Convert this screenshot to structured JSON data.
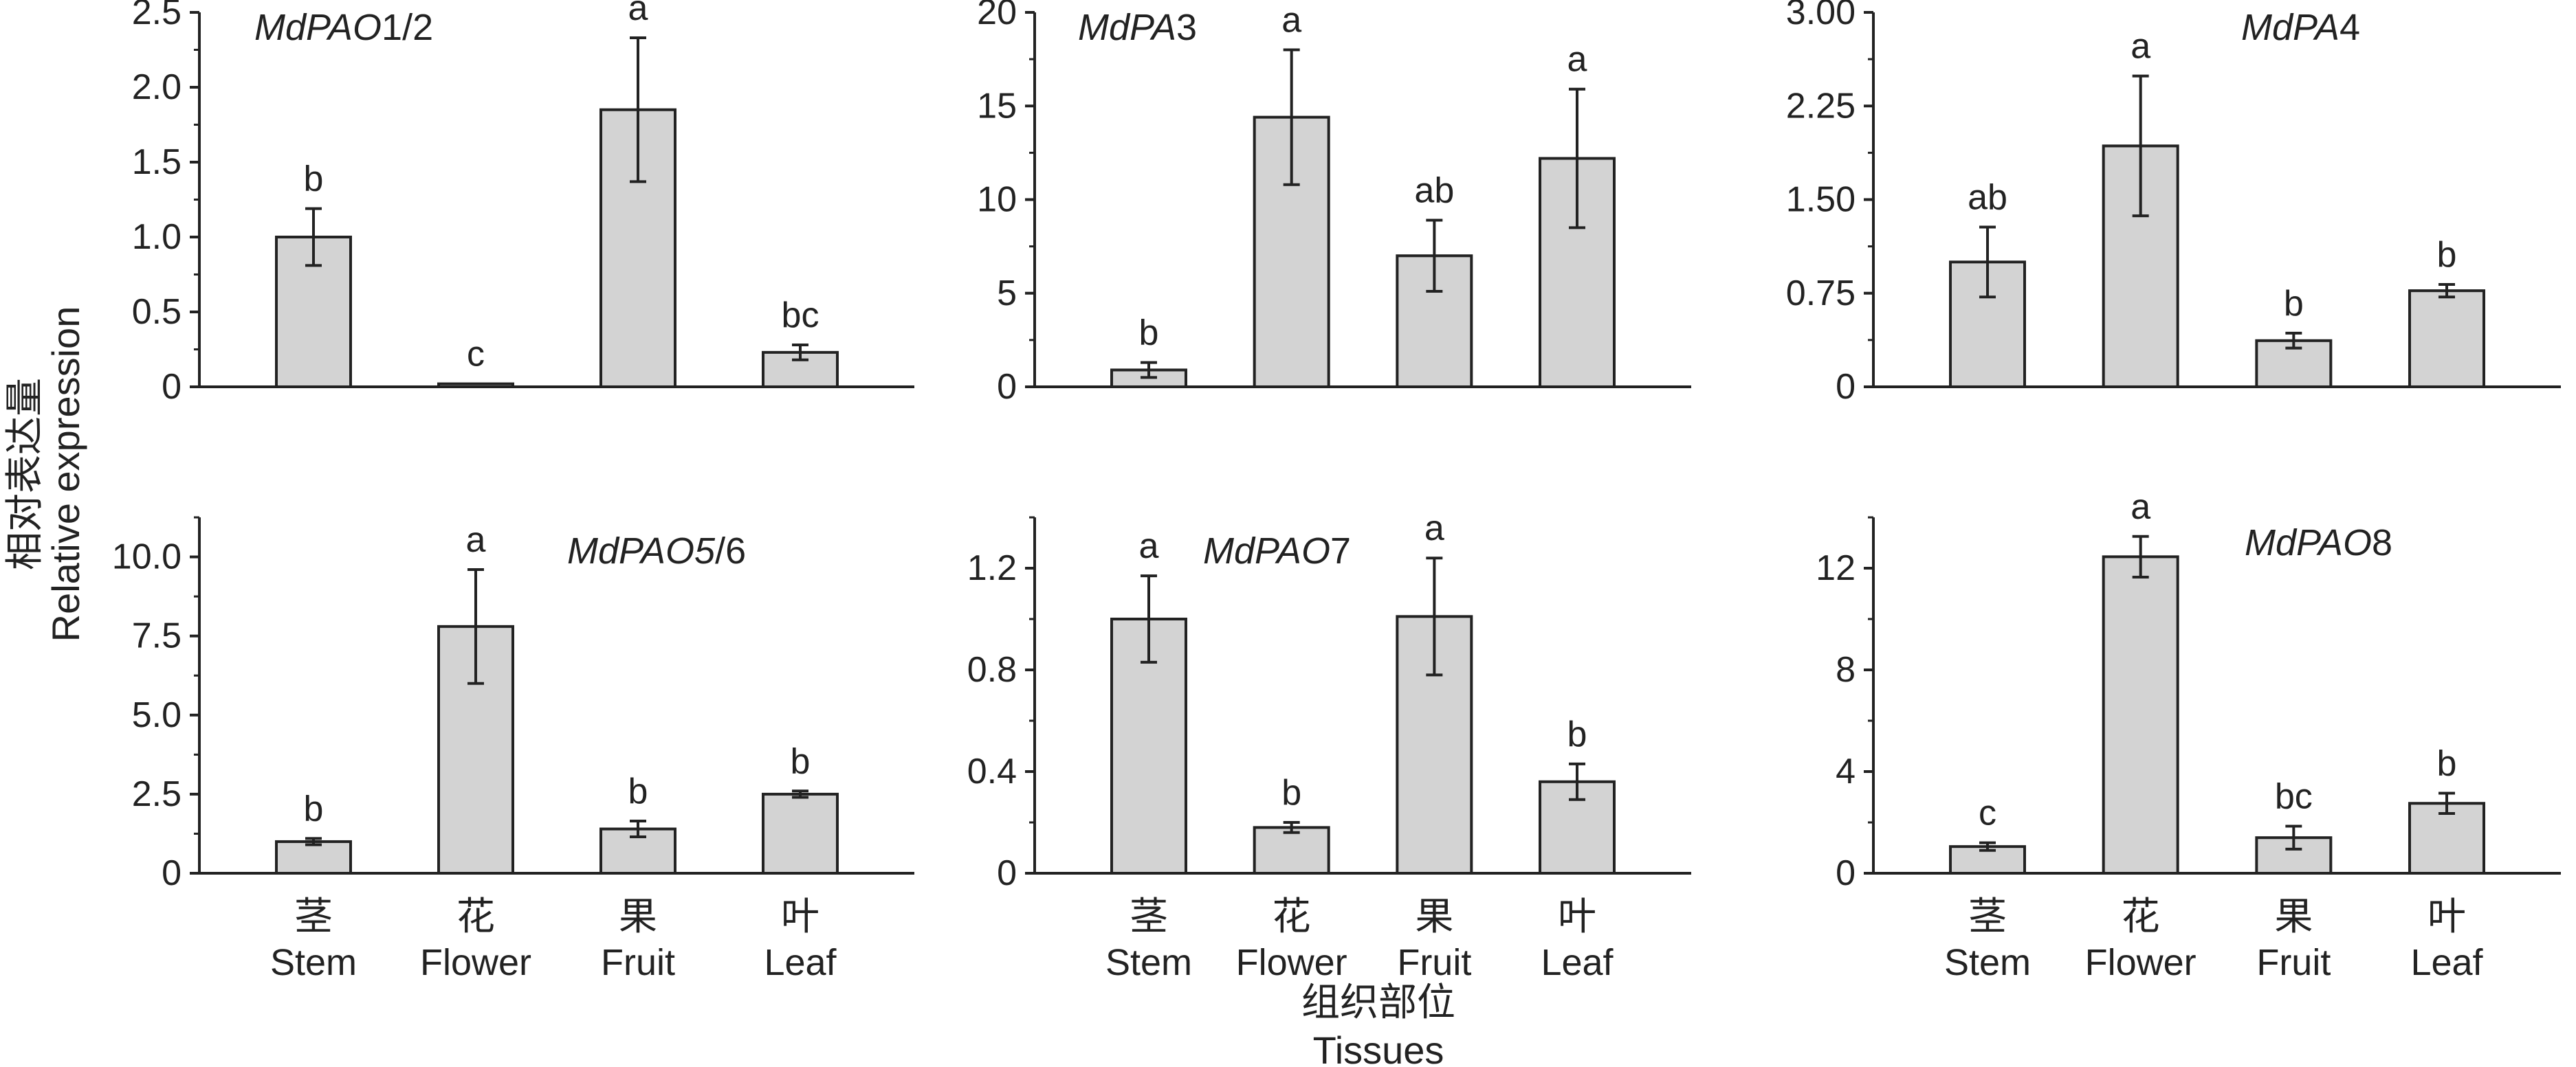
{
  "figure": {
    "ylabel_zh": "相对表达量",
    "ylabel_en": "Relative expression",
    "xlabel_zh": "组织部位",
    "xlabel_en": "Tissues"
  },
  "categories_zh": [
    "茎",
    "花",
    "果",
    "叶"
  ],
  "categories_en": [
    "Stem",
    "Flower",
    "Fruit",
    "Leaf"
  ],
  "chart_data": [
    {
      "type": "bar",
      "title_italic": "MdPAO",
      "title_plain": "1/2",
      "categories": [
        "Stem",
        "Flower",
        "Fruit",
        "Leaf"
      ],
      "values": [
        1.0,
        0.02,
        1.85,
        0.23
      ],
      "errors": [
        0.19,
        0.0,
        0.48,
        0.05
      ],
      "letters": [
        "b",
        "c",
        "a",
        "bc"
      ],
      "ylim": [
        0,
        2.5
      ],
      "yticks": [
        0,
        0.5,
        1.0,
        1.5,
        2.0,
        2.5
      ],
      "ytick_labels": [
        "0",
        "0.5",
        "1.0",
        "1.5",
        "2.0",
        "2.5"
      ]
    },
    {
      "type": "bar",
      "title_italic": "MdPA",
      "title_plain": "3",
      "categories": [
        "Stem",
        "Flower",
        "Fruit",
        "Leaf"
      ],
      "values": [
        0.9,
        14.4,
        7.0,
        12.2
      ],
      "errors": [
        0.4,
        3.6,
        1.9,
        3.7
      ],
      "letters": [
        "b",
        "a",
        "ab",
        "a"
      ],
      "ylim": [
        0,
        20
      ],
      "yticks": [
        0,
        5,
        10,
        15,
        20
      ],
      "ytick_labels": [
        "0",
        "5",
        "10",
        "15",
        "20"
      ]
    },
    {
      "type": "bar",
      "title_italic": "MdPA",
      "title_plain": "4",
      "categories": [
        "Stem",
        "Flower",
        "Fruit",
        "Leaf"
      ],
      "values": [
        1.0,
        1.93,
        0.37,
        0.77
      ],
      "errors": [
        0.28,
        0.56,
        0.06,
        0.05
      ],
      "letters": [
        "ab",
        "a",
        "b",
        "b"
      ],
      "ylim": [
        0,
        3.0
      ],
      "yticks": [
        0,
        0.75,
        1.5,
        2.25,
        3.0
      ],
      "ytick_labels": [
        "0",
        "0.75",
        "1.50",
        "2.25",
        "3.00"
      ]
    },
    {
      "type": "bar",
      "title_italic": "MdPAO5",
      "title_plain": "/6",
      "categories": [
        "Stem",
        "Flower",
        "Fruit",
        "Leaf"
      ],
      "values": [
        1.0,
        7.8,
        1.4,
        2.5
      ],
      "errors": [
        0.1,
        1.8,
        0.25,
        0.1
      ],
      "letters": [
        "b",
        "a",
        "b",
        "b"
      ],
      "ylim": [
        0,
        11.25
      ],
      "yticks": [
        0,
        2.5,
        5.0,
        7.5,
        10.0
      ],
      "ytick_labels": [
        "0",
        "2.5",
        "5.0",
        "7.5",
        "10.0"
      ]
    },
    {
      "type": "bar",
      "title_italic": "MdPAO",
      "title_plain": "7",
      "categories": [
        "Stem",
        "Flower",
        "Fruit",
        "Leaf"
      ],
      "values": [
        1.0,
        0.18,
        1.01,
        0.36
      ],
      "errors": [
        0.17,
        0.02,
        0.23,
        0.07
      ],
      "letters": [
        "a",
        "b",
        "a",
        "b"
      ],
      "ylim": [
        0,
        1.4
      ],
      "yticks": [
        0,
        0.4,
        0.8,
        1.2
      ],
      "ytick_labels": [
        "0",
        "0.4",
        "0.8",
        "1.2"
      ]
    },
    {
      "type": "bar",
      "title_italic": "MdPAO",
      "title_plain": "8",
      "categories": [
        "Stem",
        "Flower",
        "Fruit",
        "Leaf"
      ],
      "values": [
        1.05,
        12.45,
        1.4,
        2.75
      ],
      "errors": [
        0.15,
        0.8,
        0.45,
        0.4
      ],
      "letters": [
        "c",
        "a",
        "bc",
        "b"
      ],
      "ylim": [
        0,
        14
      ],
      "yticks": [
        0,
        4,
        8,
        12
      ],
      "ytick_labels": [
        "0",
        "4",
        "8",
        "12"
      ]
    }
  ],
  "colors": {
    "bar_fill": "#d3d3d3",
    "ink": "#222222"
  }
}
